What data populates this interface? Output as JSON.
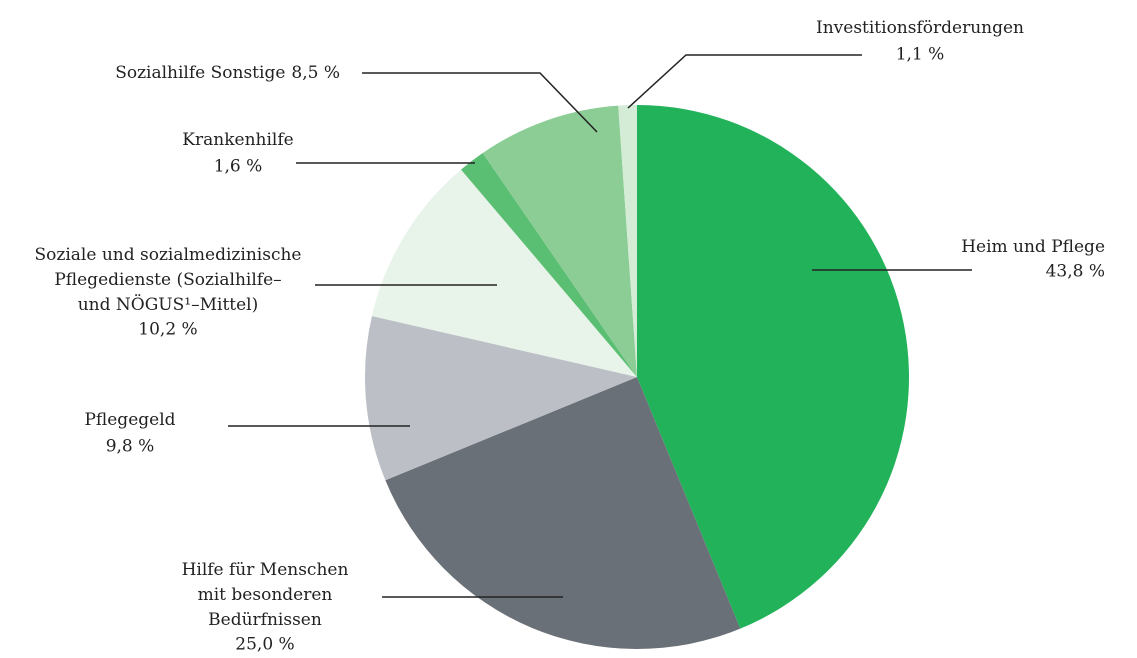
{
  "chart_data": {
    "type": "pie",
    "categories": [
      "Heim und Pflege",
      "Hilfe für Menschen\nmit besonderen\nBedürfnissen",
      "Pflegegeld",
      "Soziale und sozialmedizinische\nPflegedienste (Sozialhilfe–\nund NÖGUS¹–Mittel)",
      "Krankenhilfe",
      "Sozialhilfe Sonstige",
      "Investitionsförderungen"
    ],
    "values": [
      43.8,
      25.0,
      9.8,
      10.2,
      1.6,
      8.5,
      1.1
    ],
    "value_labels": [
      "43,8 %",
      "25,0 %",
      "9,8 %",
      "10,2 %",
      "1,6 %",
      "8,5 %",
      "1,1 %"
    ],
    "colors": [
      "#22b25a",
      "#6a7077",
      "#bcc0c6",
      "#e8f3e9",
      "#5bbf73",
      "#8ccd96",
      "#d4ecd6"
    ]
  }
}
